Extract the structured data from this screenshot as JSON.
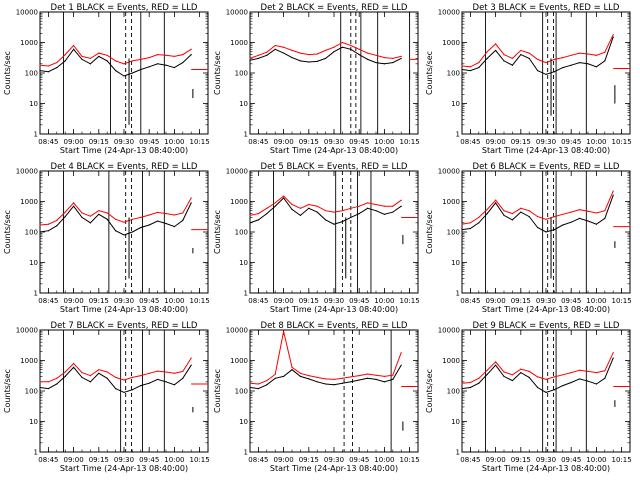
{
  "colors": {
    "events": "#000000",
    "lld": "#ff0000",
    "axes": "#000000",
    "background": "#ffffff"
  },
  "chart_data": [
    {
      "type": "line",
      "title": "Det 1  BLACK = Events, RED = LLD",
      "xlabel": "Start Time (24-Apr-13 08:40:00)",
      "ylabel": "Counts/sec",
      "yscale": "log",
      "ylim": [
        1,
        10000
      ],
      "xticks": [
        "08:45",
        "09:00",
        "09:15",
        "09:30",
        "09:45",
        "10:00",
        "10:15"
      ],
      "yticks": [
        "1",
        "10",
        "100",
        "1000",
        "10000"
      ],
      "x_minutes": [
        0,
        5,
        10,
        15,
        20,
        25,
        30,
        35,
        40,
        45,
        50,
        55,
        60,
        65,
        70,
        75,
        80,
        85,
        90
      ],
      "series": [
        {
          "name": "Events",
          "color": "#000000",
          "values": [
            120,
            110,
            150,
            250,
            600,
            280,
            200,
            350,
            250,
            120,
            80,
            100,
            130,
            160,
            200,
            180,
            150,
            220,
            400
          ]
        },
        {
          "name": "LLD",
          "color": "#ff0000",
          "values": [
            180,
            170,
            220,
            400,
            800,
            350,
            300,
            450,
            380,
            250,
            200,
            250,
            280,
            320,
            400,
            380,
            350,
            400,
            600
          ]
        }
      ],
      "vlines_solid_min": [
        14,
        42,
        60,
        74
      ],
      "vlines_dashed_min": [
        51,
        54.5
      ],
      "lld_tail": {
        "x_start": 90,
        "x_end": 100,
        "value": 130
      },
      "events_tail": {
        "x": 91,
        "values": [
          30,
          15
        ]
      },
      "dips": [
        {
          "x": 53,
          "series": "events",
          "value": 2
        }
      ]
    },
    {
      "type": "line",
      "title": "Det 2  BLACK = Events, RED = LLD",
      "xlabel": "Start Time (24-Apr-13 08:40:00)",
      "ylabel": "Counts/sec",
      "yscale": "log",
      "ylim": [
        1,
        10000
      ],
      "xticks": [
        "08:45",
        "09:00",
        "09:15",
        "09:30",
        "09:45",
        "10:00",
        "10:15"
      ],
      "yticks": [
        "1",
        "10",
        "100",
        "1000",
        "10000"
      ],
      "x_minutes": [
        0,
        5,
        10,
        15,
        20,
        25,
        30,
        35,
        40,
        45,
        50,
        55,
        60,
        65,
        70,
        75,
        80,
        85,
        90
      ],
      "series": [
        {
          "name": "Events",
          "color": "#000000",
          "values": [
            260,
            300,
            380,
            600,
            450,
            320,
            250,
            230,
            240,
            300,
            500,
            700,
            600,
            400,
            280,
            220,
            200,
            220,
            300
          ]
        },
        {
          "name": "LLD",
          "color": "#ff0000",
          "values": [
            300,
            380,
            480,
            800,
            700,
            550,
            450,
            400,
            420,
            550,
            700,
            1000,
            800,
            600,
            450,
            380,
            320,
            300,
            350
          ]
        }
      ],
      "vlines_solid_min": [
        54,
        66,
        76,
        95
      ],
      "vlines_dashed_min": [
        60,
        63
      ],
      "lld_tail": {
        "x_start": 95,
        "x_end": 100,
        "value": 280
      },
      "events_tail": {
        "x": 95,
        "values": [
          120,
          60
        ]
      },
      "dips": []
    },
    {
      "type": "line",
      "title": "Det 3  BLACK = Events, RED = LLD",
      "xlabel": "Start Time (24-Apr-13 08:40:00)",
      "ylabel": "Counts/sec",
      "yscale": "log",
      "ylim": [
        1,
        10000
      ],
      "xticks": [
        "08:45",
        "09:00",
        "09:15",
        "09:30",
        "09:45",
        "10:00",
        "10:15"
      ],
      "yticks": [
        "1",
        "10",
        "100",
        "1000",
        "10000"
      ],
      "x_minutes": [
        0,
        5,
        10,
        15,
        20,
        25,
        30,
        35,
        40,
        45,
        50,
        55,
        60,
        65,
        70,
        75,
        80,
        85,
        90
      ],
      "series": [
        {
          "name": "Events",
          "color": "#000000",
          "values": [
            130,
            120,
            150,
            300,
            550,
            250,
            180,
            400,
            300,
            120,
            90,
            110,
            150,
            180,
            220,
            200,
            160,
            250,
            1500
          ]
        },
        {
          "name": "LLD",
          "color": "#ff0000",
          "values": [
            170,
            160,
            220,
            500,
            900,
            400,
            300,
            550,
            450,
            280,
            220,
            280,
            320,
            380,
            450,
            420,
            380,
            480,
            1800
          ]
        }
      ],
      "vlines_solid_min": [
        14,
        48,
        56,
        74
      ],
      "vlines_dashed_min": [
        51,
        54.5
      ],
      "lld_tail": {
        "x_start": 90,
        "x_end": 100,
        "value": 140
      },
      "events_tail": {
        "x": 91,
        "values": [
          40,
          10
        ]
      },
      "dips": [
        {
          "x": 53,
          "series": "events",
          "value": 4
        }
      ]
    },
    {
      "type": "line",
      "title": "Det 4  BLACK = Events, RED = LLD",
      "xlabel": "Start Time (24-Apr-13 08:40:00)",
      "ylabel": "Counts/sec",
      "yscale": "log",
      "ylim": [
        1,
        10000
      ],
      "xticks": [
        "08:45",
        "09:00",
        "09:15",
        "09:30",
        "09:45",
        "10:00",
        "10:15"
      ],
      "yticks": [
        "1",
        "10",
        "100",
        "1000",
        "10000"
      ],
      "x_minutes": [
        0,
        5,
        10,
        15,
        20,
        25,
        30,
        35,
        40,
        45,
        50,
        55,
        60,
        65,
        70,
        75,
        80,
        85,
        90
      ],
      "series": [
        {
          "name": "Events",
          "color": "#000000",
          "values": [
            100,
            110,
            160,
            320,
            700,
            300,
            200,
            380,
            260,
            110,
            80,
            100,
            140,
            170,
            230,
            190,
            150,
            240,
            900
          ]
        },
        {
          "name": "LLD",
          "color": "#ff0000",
          "values": [
            170,
            180,
            240,
            450,
            900,
            420,
            330,
            500,
            420,
            260,
            210,
            260,
            300,
            360,
            440,
            400,
            360,
            420,
            1300
          ]
        }
      ],
      "vlines_solid_min": [
        14,
        41,
        61,
        74
      ],
      "vlines_dashed_min": [
        51,
        54.5
      ],
      "lld_tail": {
        "x_start": 90,
        "x_end": 100,
        "value": 120
      },
      "events_tail": {
        "x": 91,
        "values": [
          30,
          20
        ]
      },
      "dips": [
        {
          "x": 53,
          "series": "events",
          "value": 3
        }
      ]
    },
    {
      "type": "line",
      "title": "Det 5  BLACK = Events, RED = LLD",
      "xlabel": "Start Time (24-Apr-13 08:40:00)",
      "ylabel": "Counts/sec",
      "yscale": "log",
      "ylim": [
        1,
        10000
      ],
      "xticks": [
        "08:45",
        "09:00",
        "09:15",
        "09:30",
        "09:45",
        "10:00",
        "10:15"
      ],
      "yticks": [
        "1",
        "10",
        "100",
        "1000",
        "10000"
      ],
      "x_minutes": [
        0,
        5,
        10,
        15,
        20,
        25,
        30,
        35,
        40,
        45,
        50,
        55,
        60,
        65,
        70,
        75,
        80,
        85,
        90
      ],
      "series": [
        {
          "name": "Events",
          "color": "#000000",
          "values": [
            200,
            250,
            400,
            700,
            1300,
            550,
            350,
            600,
            450,
            250,
            180,
            220,
            300,
            400,
            600,
            500,
            380,
            450,
            700
          ]
        },
        {
          "name": "LLD",
          "color": "#ff0000",
          "values": [
            350,
            400,
            600,
            900,
            1500,
            800,
            600,
            800,
            700,
            500,
            450,
            500,
            600,
            700,
            900,
            800,
            700,
            700,
            1100
          ]
        }
      ],
      "vlines_solid_min": [
        14,
        51,
        64,
        72
      ],
      "vlines_dashed_min": [
        55,
        60
      ],
      "lld_tail": {
        "x_start": 90,
        "x_end": 100,
        "value": 300
      },
      "events_tail": {
        "x": 91,
        "values": [
          80,
          40
        ]
      },
      "dips": [
        {
          "x": 57,
          "series": "events",
          "value": 3
        }
      ]
    },
    {
      "type": "line",
      "title": "Det 6  BLACK = Events, RED = LLD",
      "xlabel": "Start Time (24-Apr-13 08:40:00)",
      "ylabel": "Counts/sec",
      "yscale": "log",
      "ylim": [
        1,
        10000
      ],
      "xticks": [
        "08:45",
        "09:00",
        "09:15",
        "09:30",
        "09:45",
        "10:00",
        "10:15"
      ],
      "yticks": [
        "1",
        "10",
        "100",
        "1000",
        "10000"
      ],
      "x_minutes": [
        0,
        5,
        10,
        15,
        20,
        25,
        30,
        35,
        40,
        45,
        50,
        55,
        60,
        65,
        70,
        75,
        80,
        85,
        90
      ],
      "series": [
        {
          "name": "Events",
          "color": "#000000",
          "values": [
            120,
            130,
            200,
            400,
            900,
            350,
            250,
            450,
            320,
            140,
            100,
            120,
            170,
            210,
            280,
            230,
            180,
            280,
            1600
          ]
        },
        {
          "name": "LLD",
          "color": "#ff0000",
          "values": [
            180,
            200,
            300,
            550,
            1100,
            500,
            400,
            600,
            500,
            320,
            260,
            320,
            380,
            450,
            540,
            480,
            420,
            500,
            2200
          ]
        }
      ],
      "vlines_solid_min": [
        14,
        48,
        56,
        74
      ],
      "vlines_dashed_min": [
        51,
        54.5
      ],
      "lld_tail": {
        "x_start": 90,
        "x_end": 100,
        "value": 150
      },
      "events_tail": {
        "x": 91,
        "values": [
          50,
          30
        ]
      },
      "dips": [
        {
          "x": 53,
          "series": "events",
          "value": 3
        }
      ]
    },
    {
      "type": "line",
      "title": "Det 7  BLACK = Events, RED = LLD",
      "xlabel": "Start Time (24-Apr-13 08:40:00)",
      "ylabel": "Counts/sec",
      "yscale": "log",
      "ylim": [
        1,
        10000
      ],
      "xticks": [
        "08:45",
        "09:00",
        "09:15",
        "09:30",
        "09:45",
        "10:00",
        "10:15"
      ],
      "yticks": [
        "1",
        "10",
        "100",
        "1000",
        "10000"
      ],
      "x_minutes": [
        0,
        5,
        10,
        15,
        20,
        25,
        30,
        35,
        40,
        45,
        50,
        55,
        60,
        65,
        70,
        75,
        80,
        85,
        90
      ],
      "series": [
        {
          "name": "Events",
          "color": "#000000",
          "values": [
            130,
            120,
            170,
            300,
            600,
            280,
            200,
            380,
            260,
            120,
            90,
            110,
            150,
            180,
            240,
            200,
            160,
            260,
            700
          ]
        },
        {
          "name": "LLD",
          "color": "#ff0000",
          "values": [
            200,
            200,
            260,
            420,
            800,
            400,
            320,
            500,
            420,
            280,
            230,
            280,
            320,
            380,
            450,
            420,
            380,
            440,
            1200
          ]
        }
      ],
      "vlines_solid_min": [
        14,
        48,
        61,
        74
      ],
      "vlines_dashed_min": [
        51,
        54.5
      ],
      "lld_tail": {
        "x_start": 90,
        "x_end": 100,
        "value": 170
      },
      "events_tail": {
        "x": 91,
        "values": [
          30,
          20
        ]
      },
      "dips": []
    },
    {
      "type": "line",
      "title": "Det 8  BLACK = Events, RED = LLD",
      "xlabel": "Start Time (24-Apr-13 08:40:00)",
      "ylabel": "Counts/sec",
      "yscale": "log",
      "ylim": [
        1,
        10000
      ],
      "xticks": [
        "08:45",
        "09:00",
        "09:15",
        "09:30",
        "09:45",
        "10:00",
        "10:15"
      ],
      "yticks": [
        "1",
        "10",
        "100",
        "1000",
        "10000"
      ],
      "x_minutes": [
        0,
        5,
        10,
        15,
        20,
        25,
        30,
        35,
        40,
        45,
        50,
        55,
        60,
        65,
        70,
        75,
        80,
        85,
        90
      ],
      "series": [
        {
          "name": "Events",
          "color": "#000000",
          "values": [
            130,
            120,
            160,
            260,
            300,
            500,
            300,
            250,
            200,
            170,
            160,
            180,
            200,
            230,
            260,
            240,
            200,
            240,
            700
          ]
        },
        {
          "name": "LLD",
          "color": "#ff0000",
          "values": [
            180,
            170,
            220,
            350,
            9000,
            600,
            380,
            320,
            280,
            250,
            240,
            260,
            290,
            320,
            360,
            330,
            300,
            330,
            1800
          ]
        }
      ],
      "vlines_solid_min": [
        84
      ],
      "vlines_dashed_min": [
        56,
        61
      ],
      "lld_tail": {
        "x_start": 90,
        "x_end": 100,
        "value": 140
      },
      "events_tail": {
        "x": 91,
        "values": [
          10,
          5
        ]
      },
      "dips": []
    },
    {
      "type": "line",
      "title": "Det 9  BLACK = Events, RED = LLD",
      "xlabel": "Start Time (24-Apr-13 08:40:00)",
      "ylabel": "Counts/sec",
      "yscale": "log",
      "ylim": [
        1,
        10000
      ],
      "xticks": [
        "08:45",
        "09:00",
        "09:15",
        "09:30",
        "09:45",
        "10:00",
        "10:15"
      ],
      "yticks": [
        "1",
        "10",
        "100",
        "1000",
        "10000"
      ],
      "x_minutes": [
        0,
        5,
        10,
        15,
        20,
        25,
        30,
        35,
        40,
        45,
        50,
        55,
        60,
        65,
        70,
        75,
        80,
        85,
        90
      ],
      "series": [
        {
          "name": "Events",
          "color": "#000000",
          "values": [
            120,
            130,
            180,
            350,
            700,
            300,
            220,
            400,
            280,
            130,
            90,
            110,
            150,
            190,
            250,
            210,
            170,
            260,
            1200
          ]
        },
        {
          "name": "LLD",
          "color": "#ff0000",
          "values": [
            180,
            190,
            260,
            480,
            900,
            420,
            340,
            520,
            440,
            290,
            240,
            290,
            340,
            400,
            480,
            440,
            400,
            460,
            1800
          ]
        }
      ],
      "vlines_solid_min": [
        14,
        48,
        56,
        74
      ],
      "vlines_dashed_min": [
        51,
        54.5
      ],
      "lld_tail": {
        "x_start": 90,
        "x_end": 100,
        "value": 140
      },
      "events_tail": {
        "x": 91,
        "values": [
          50,
          30
        ]
      },
      "dips": []
    }
  ]
}
